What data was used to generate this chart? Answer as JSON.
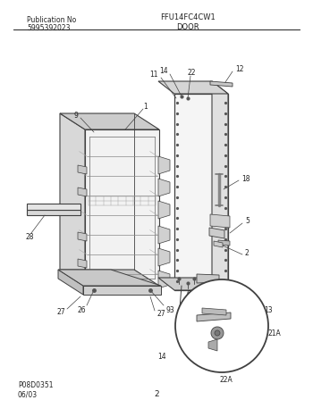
{
  "title_model": "FFU14FC4CW1",
  "pub_no_label": "Publication No",
  "pub_no": "5995392023",
  "section_label": "DOOR",
  "diagram_label": "P08D0351",
  "date_label": "06/03",
  "page_label": "2",
  "bg_color": "#ffffff",
  "line_color": "#404040",
  "text_color": "#222222"
}
